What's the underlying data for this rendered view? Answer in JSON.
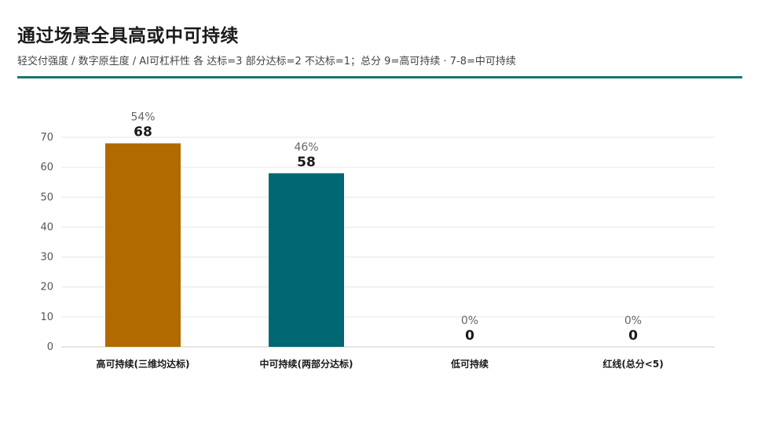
{
  "header": {
    "title": "通过场景全具高或中可持续",
    "subtitle": "轻交付强度 / 数字原生度 / AI可杠杆性 各 达标=3 部分达标=2 不达标=1；总分 9=高可持续 · 7-8=中可持续"
  },
  "colors": {
    "accent_rule": "#17766c",
    "bar_high": "#b06a00",
    "bar_mid": "#006873",
    "grid": "#e6e6e6",
    "axis": "#cccccc"
  },
  "chart_data": {
    "type": "bar",
    "title": "通过场景全具高或中可持续",
    "categories": [
      "高可持续(三维均达标)",
      "中可持续(两部分达标)",
      "低可持续",
      "红线(总分<5)"
    ],
    "values": [
      68,
      58,
      0,
      0
    ],
    "percent_labels": [
      "54%",
      "46%",
      "0%",
      "0%"
    ],
    "bar_colors": [
      "#b06a00",
      "#006873",
      "#cccccc",
      "#cccccc"
    ],
    "ylim": [
      0,
      70
    ],
    "yticks": [
      0,
      10,
      20,
      30,
      40,
      50,
      60,
      70
    ],
    "grid": true,
    "xlabel": "",
    "ylabel": ""
  }
}
